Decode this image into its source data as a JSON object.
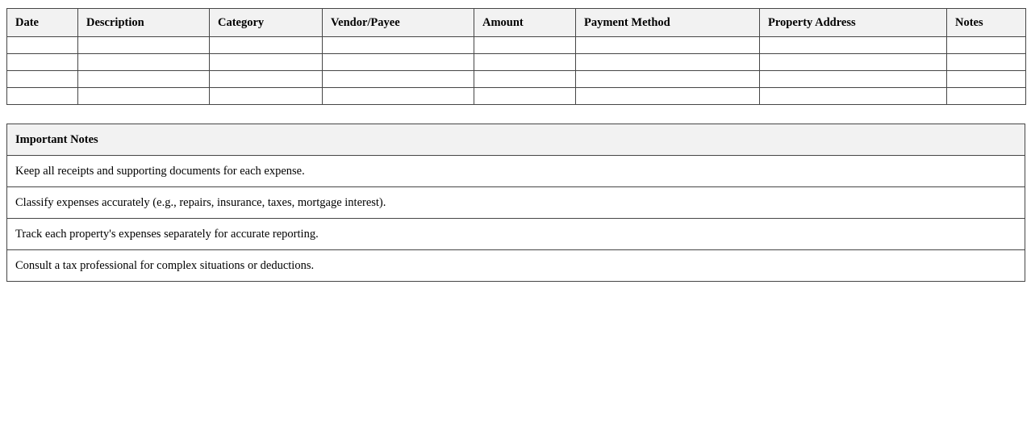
{
  "expense_table": {
    "columns": [
      "Date",
      "Description",
      "Category",
      "Vendor/Payee",
      "Amount",
      "Payment Method",
      "Property Address",
      "Notes"
    ],
    "rows": [
      [
        "",
        "",
        "",
        "",
        "",
        "",
        "",
        ""
      ],
      [
        "",
        "",
        "",
        "",
        "",
        "",
        "",
        ""
      ],
      [
        "",
        "",
        "",
        "",
        "",
        "",
        "",
        ""
      ],
      [
        "",
        "",
        "",
        "",
        "",
        "",
        "",
        ""
      ]
    ]
  },
  "notes_table": {
    "header": "Important Notes",
    "rows": [
      "Keep all receipts and supporting documents for each expense.",
      "Classify expenses accurately (e.g., repairs, insurance, taxes, mortgage interest).",
      "Track each property's expenses separately for accurate reporting.",
      "Consult a tax professional for complex situations or deductions."
    ]
  },
  "colors": {
    "header_background": "#f2f2f2",
    "table_border": "#464646",
    "text": "#000000",
    "page_background": "#ffffff"
  }
}
